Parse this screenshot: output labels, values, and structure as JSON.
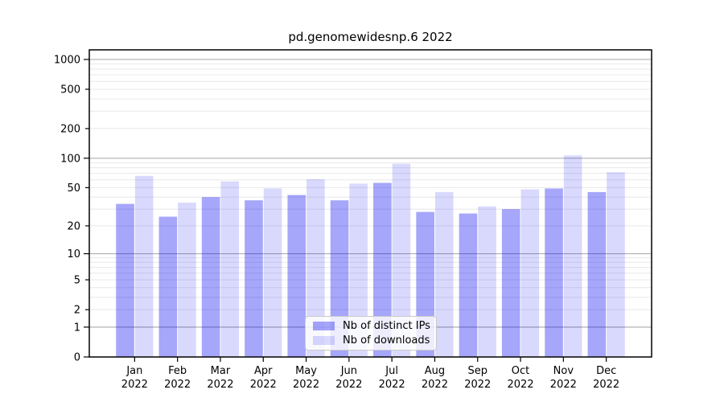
{
  "chart_data": {
    "type": "bar",
    "title": "pd.genomewidesnp.6 2022",
    "categories": [
      "Jan",
      "Feb",
      "Mar",
      "Apr",
      "May",
      "Jun",
      "Jul",
      "Aug",
      "Sep",
      "Oct",
      "Nov",
      "Dec"
    ],
    "category_year": "2022",
    "series": [
      {
        "name": "Nb of distinct IPs",
        "color": "#0000f0",
        "alpha": 0.35,
        "values": [
          34,
          25,
          40,
          37,
          42,
          37,
          56,
          28,
          27,
          30,
          49,
          45
        ]
      },
      {
        "name": "Nb of downloads",
        "color": "#0000f0",
        "alpha": 0.15,
        "values": [
          66,
          35,
          58,
          49,
          61,
          55,
          88,
          45,
          32,
          48,
          107,
          72
        ]
      }
    ],
    "y_scale": "log1p",
    "y_ticks": [
      0,
      1,
      2,
      5,
      10,
      20,
      50,
      100,
      200,
      500,
      1000
    ],
    "y_major_ticks": [
      0,
      1,
      10,
      100,
      1000
    ],
    "ylim": [
      0,
      1250
    ],
    "xlabel": "",
    "ylabel": "",
    "grid": "both",
    "legend_position": "lower center inset",
    "style": {
      "major_grid_color": "#b0b0b0",
      "minor_grid_color": "#e8e8e8",
      "axis_color": "#000000",
      "text_color": "#000000",
      "background": "#ffffff"
    }
  }
}
